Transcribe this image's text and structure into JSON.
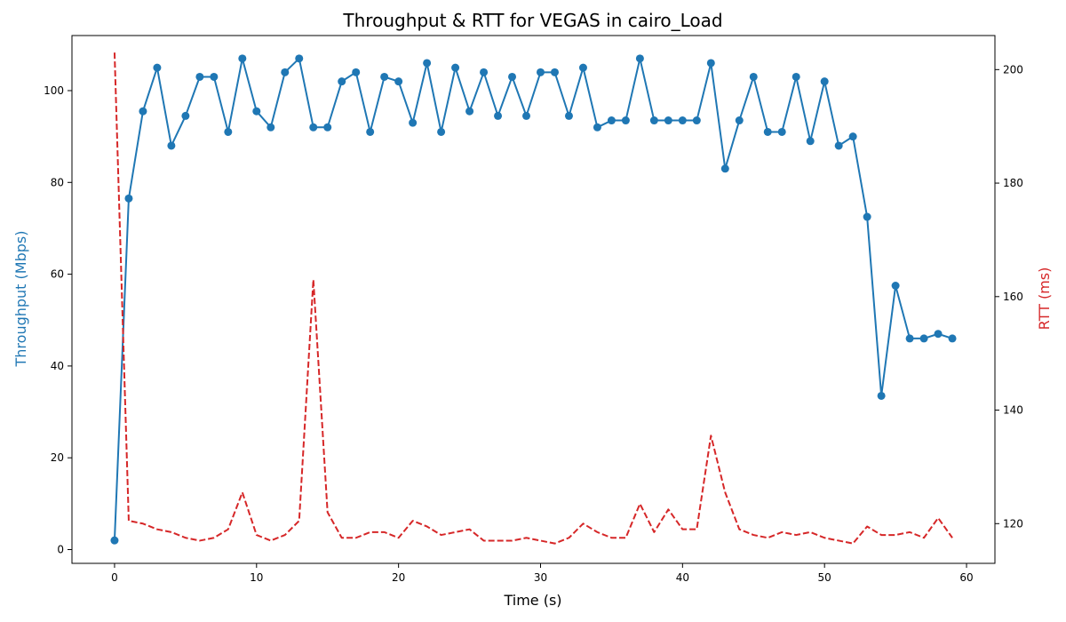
{
  "colors": {
    "throughput": "#1f77b4",
    "rtt": "#d62728",
    "axis": "#000000"
  },
  "chart_data": {
    "type": "line",
    "title": "Throughput & RTT for VEGAS in cairo_Load",
    "xlabel": "Time (s)",
    "ylabel_left": "Throughput (Mbps)",
    "ylabel_right": "RTT (ms)",
    "xlim": [
      -3,
      62
    ],
    "ylim_left": [
      -3,
      112
    ],
    "ylim_right": [
      113,
      206
    ],
    "x_ticks": [
      0,
      10,
      20,
      30,
      40,
      50,
      60
    ],
    "y_ticks_left": [
      0,
      20,
      40,
      60,
      80,
      100
    ],
    "y_ticks_right": [
      120,
      140,
      160,
      180,
      200
    ],
    "grid": false,
    "x": [
      0,
      1,
      2,
      3,
      4,
      5,
      6,
      7,
      8,
      9,
      10,
      11,
      12,
      13,
      14,
      15,
      16,
      17,
      18,
      19,
      20,
      21,
      22,
      23,
      24,
      25,
      26,
      27,
      28,
      29,
      30,
      31,
      32,
      33,
      34,
      35,
      36,
      37,
      38,
      39,
      40,
      41,
      42,
      43,
      44,
      45,
      46,
      47,
      48,
      49,
      50,
      51,
      52,
      53,
      54,
      55,
      56,
      57,
      58,
      59
    ],
    "series": [
      {
        "name": "Throughput (Mbps)",
        "axis": "left",
        "style": "solid-markers",
        "values": [
          2,
          76.5,
          95.5,
          105,
          88,
          94.5,
          103,
          103,
          91,
          107,
          95.5,
          92,
          104,
          107,
          92,
          92,
          102,
          104,
          91,
          103,
          102,
          93,
          106,
          91,
          105,
          95.5,
          104,
          94.5,
          103,
          94.5,
          104,
          104,
          94.5,
          105,
          92,
          93.5,
          93.5,
          107,
          93.5,
          93.5,
          93.5,
          93.5,
          106,
          83,
          93.5,
          103,
          91,
          91,
          103,
          89,
          102,
          88,
          90,
          72.5,
          33.5,
          57.5,
          46,
          46,
          47,
          46
        ]
      },
      {
        "name": "RTT (ms)",
        "axis": "right",
        "style": "dashed",
        "values": [
          203,
          120.5,
          120,
          119,
          118.5,
          117.5,
          117,
          117.5,
          119,
          125.5,
          118,
          117,
          118,
          120.5,
          163,
          122,
          117.5,
          117.5,
          118.5,
          118.5,
          117.5,
          120.5,
          119.5,
          118,
          118.5,
          119,
          117,
          117,
          117,
          117.5,
          117,
          116.5,
          117.5,
          120,
          118.5,
          117.5,
          117.5,
          123.5,
          118.5,
          122.5,
          119,
          119,
          135.5,
          125.5,
          119,
          118,
          117.5,
          118.5,
          118,
          118.5,
          117.5,
          117,
          116.5,
          119.5,
          118,
          118,
          118.5,
          117.5,
          121,
          117.5
        ]
      }
    ]
  }
}
